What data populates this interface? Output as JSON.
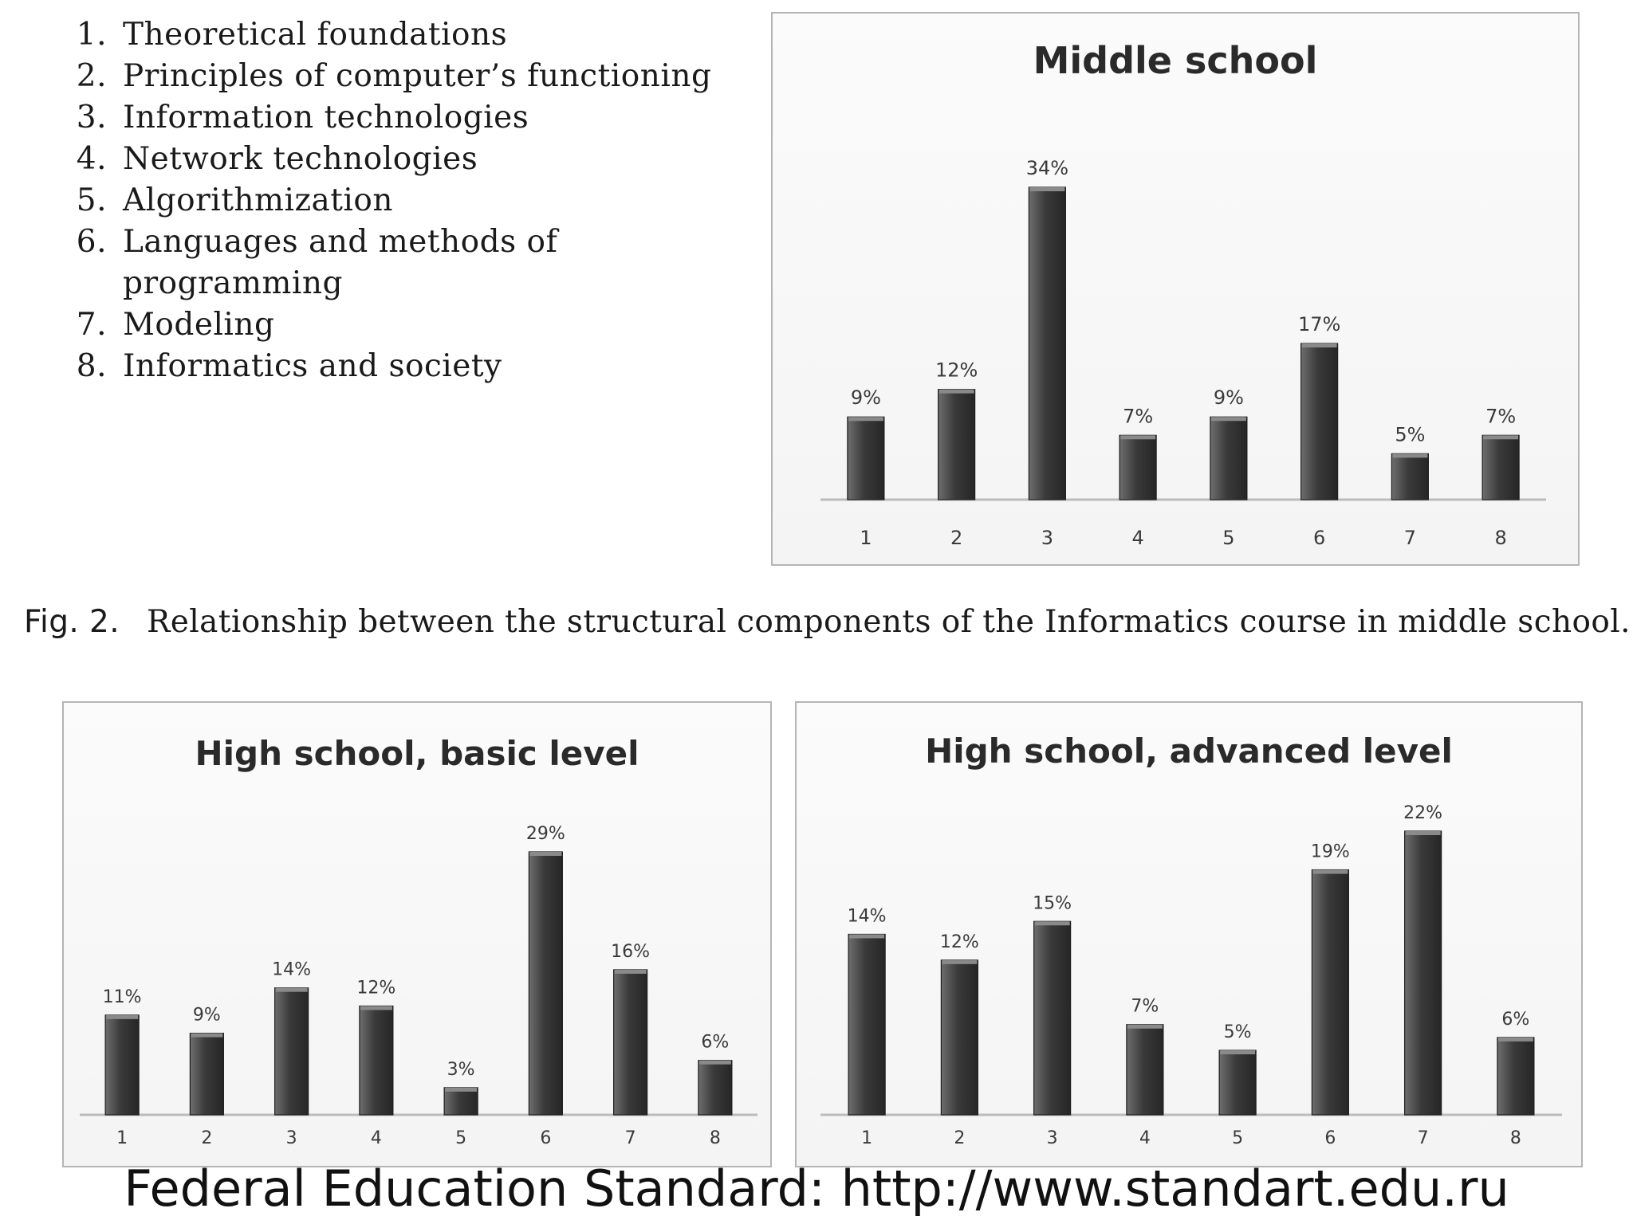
{
  "topics": [
    {
      "num": "1.",
      "text": "Theoretical foundations"
    },
    {
      "num": "2.",
      "text": "Principles of computer’s functioning"
    },
    {
      "num": "3.",
      "text": "Information technologies"
    },
    {
      "num": "4.",
      "text": "Network technologies"
    },
    {
      "num": "5.",
      "text": "Algorithmization"
    },
    {
      "num": "6.",
      "text": "Languages and methods of programming"
    },
    {
      "num": "7.",
      "text": "Modeling"
    },
    {
      "num": "8.",
      "text": "Informatics and society"
    }
  ],
  "caption": {
    "fig": "Fig. 2.",
    "text": "Relationship between the structural components of the Informatics course in middle school."
  },
  "footer": "Federal Education Standard: http://www.standart.edu.ru",
  "colors": {
    "bar": "#3a3a3a",
    "bar_light": "#6e6e6e",
    "axis": "#bcbcbc",
    "panel_border": "#b5b5b5"
  },
  "chart_data": [
    {
      "id": "middle",
      "type": "bar",
      "title": "Middle school",
      "categories": [
        "1",
        "2",
        "3",
        "4",
        "5",
        "6",
        "7",
        "8"
      ],
      "values": [
        9,
        12,
        34,
        7,
        9,
        17,
        5,
        7
      ],
      "labels": [
        "9%",
        "12%",
        "34%",
        "7%",
        "9%",
        "17%",
        "5%",
        "7%"
      ],
      "ylim": [
        0,
        34
      ],
      "grid": false
    },
    {
      "id": "basic",
      "type": "bar",
      "title": "High school, basic level",
      "categories": [
        "1",
        "2",
        "3",
        "4",
        "5",
        "6",
        "7",
        "8"
      ],
      "values": [
        11,
        9,
        14,
        12,
        3,
        29,
        16,
        6
      ],
      "labels": [
        "11%",
        "9%",
        "14%",
        "12%",
        "3%",
        "29%",
        "16%",
        "6%"
      ],
      "ylim": [
        0,
        29
      ],
      "grid": false
    },
    {
      "id": "advanced",
      "type": "bar",
      "title": "High school, advanced level",
      "categories": [
        "1",
        "2",
        "3",
        "4",
        "5",
        "6",
        "7",
        "8"
      ],
      "values": [
        14,
        12,
        15,
        7,
        5,
        19,
        22,
        6
      ],
      "labels": [
        "14%",
        "12%",
        "15%",
        "7%",
        "5%",
        "19%",
        "22%",
        "6%"
      ],
      "ylim": [
        0,
        22
      ],
      "grid": false
    }
  ]
}
